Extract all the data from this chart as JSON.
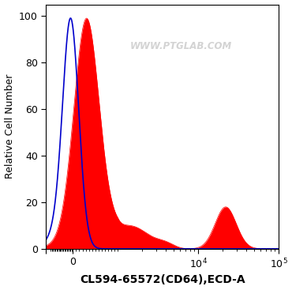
{
  "title": "",
  "xlabel": "CL594-65572(CD64),ECD-A",
  "ylabel": "Relative Cell Number",
  "watermark": "WWW.PTGLAB.COM",
  "ylim_min": 0,
  "ylim_max": 105,
  "yticks": [
    0,
    20,
    40,
    60,
    80,
    100
  ],
  "blue_color": "#0000cc",
  "red_color": "#ff0000",
  "background_color": "#ffffff",
  "xlabel_fontsize": 10,
  "ylabel_fontsize": 9,
  "tick_fontsize": 9,
  "linthresh": 1000,
  "linscale": 0.5
}
